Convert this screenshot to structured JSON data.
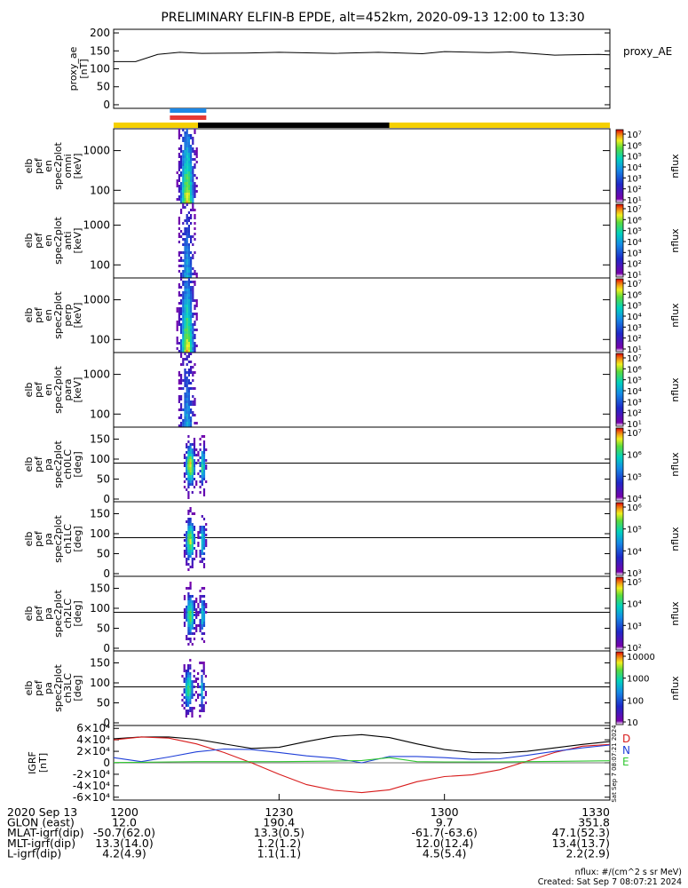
{
  "title": "PRELIMINARY ELFIN-B EPDE, alt=452km, 2020-09-13 12:00 to 13:30",
  "chart_data": [
    {
      "type": "line",
      "panel": "proxy_ae",
      "ylabel_lines": [
        "proxy_ae",
        "[nT]"
      ],
      "legend": "proxy_AE",
      "ylim": [
        -10,
        210
      ],
      "yticks": [
        "0",
        "50",
        "100",
        "150",
        "200"
      ],
      "x_minutes": [
        0,
        4,
        8,
        12,
        16,
        24,
        30,
        40,
        48,
        56,
        60,
        68,
        72,
        80,
        88,
        90
      ],
      "values": [
        120,
        120,
        140,
        146,
        143,
        144,
        146,
        143,
        146,
        142,
        148,
        145,
        147,
        138,
        140,
        139
      ]
    },
    {
      "type": "timebar",
      "panel": "orbit",
      "segments": [
        {
          "start_min": 0,
          "end_min": 15.3,
          "color": "#f5d000"
        },
        {
          "start_min": 15.3,
          "end_min": 50,
          "color": "#000000"
        },
        {
          "start_min": 50,
          "end_min": 90,
          "color": "#f5d000"
        }
      ],
      "markers": [
        {
          "start_min": 10.2,
          "end_min": 16.8,
          "color": "#1e88e5"
        },
        {
          "start_min": 10.2,
          "end_min": 16.8,
          "color": "#e53935"
        }
      ]
    },
    {
      "type": "heatmap",
      "panel": "omni",
      "ylabel_lines": [
        "elb",
        "pef",
        "en",
        "spec2plot",
        "omni",
        "[keV]"
      ],
      "yscale": "log",
      "yticks": [
        "100",
        "1000"
      ],
      "colorbar": {
        "label": "nflux",
        "ticks": [
          "10⁷",
          "10⁶",
          "10⁵",
          "10⁴",
          "10³",
          "10²",
          "10¹"
        ]
      },
      "x_range_min": [
        10.3,
        16.8
      ]
    },
    {
      "type": "heatmap",
      "panel": "anti",
      "ylabel_lines": [
        "elb",
        "pef",
        "en",
        "spec2plot",
        "anti",
        "[keV]"
      ],
      "yscale": "log",
      "yticks": [
        "100",
        "1000"
      ],
      "colorbar": {
        "label": "nflux",
        "ticks": [
          "10⁷",
          "10⁶",
          "10⁵",
          "10⁴",
          "10³",
          "10²",
          "10¹"
        ]
      },
      "x_range_min": [
        10.3,
        16.8
      ]
    },
    {
      "type": "heatmap",
      "panel": "perp",
      "ylabel_lines": [
        "elb",
        "pef",
        "en",
        "spec2plot",
        "perp",
        "[keV]"
      ],
      "yscale": "log",
      "yticks": [
        "100",
        "1000"
      ],
      "colorbar": {
        "label": "nflux",
        "ticks": [
          "10⁷",
          "10⁶",
          "10⁵",
          "10⁴",
          "10³",
          "10²",
          "10¹"
        ]
      },
      "x_range_min": [
        10.3,
        16.8
      ]
    },
    {
      "type": "heatmap",
      "panel": "para",
      "ylabel_lines": [
        "elb",
        "pef",
        "en",
        "spec2plot",
        "para",
        "[keV]"
      ],
      "yscale": "log",
      "yticks": [
        "100",
        "1000"
      ],
      "colorbar": {
        "label": "nflux",
        "ticks": [
          "10⁷",
          "10⁶",
          "10⁵",
          "10⁴",
          "10³",
          "10²",
          "10¹"
        ]
      },
      "x_range_min": [
        10.3,
        16.8
      ]
    },
    {
      "type": "heatmap",
      "panel": "ch0LC",
      "ylabel_lines": [
        "elb",
        "pef",
        "pa",
        "spec2plot",
        "ch0LC",
        "[deg]"
      ],
      "ylim": [
        0,
        180
      ],
      "yticks": [
        "0",
        "50",
        "100",
        "150"
      ],
      "ref_line": 90,
      "colorbar": {
        "label": "nflux",
        "ticks": [
          "10⁷",
          "10⁶",
          "10⁵",
          "10⁴"
        ]
      },
      "x_range_min": [
        12.0,
        16.8
      ]
    },
    {
      "type": "heatmap",
      "panel": "ch1LC",
      "ylabel_lines": [
        "elb",
        "pef",
        "pa",
        "spec2plot",
        "ch1LC",
        "[deg]"
      ],
      "ylim": [
        0,
        180
      ],
      "yticks": [
        "0",
        "50",
        "100",
        "150"
      ],
      "ref_line": 90,
      "colorbar": {
        "label": "nflux",
        "ticks": [
          "10⁶",
          "10⁵",
          "10⁴",
          "10³"
        ]
      },
      "x_range_min": [
        12.0,
        16.8
      ]
    },
    {
      "type": "heatmap",
      "panel": "ch2LC",
      "ylabel_lines": [
        "elb",
        "pef",
        "pa",
        "spec2plot",
        "ch2LC",
        "[deg]"
      ],
      "ylim": [
        0,
        180
      ],
      "yticks": [
        "0",
        "50",
        "100",
        "150"
      ],
      "ref_line": 90,
      "colorbar": {
        "label": "nflux",
        "ticks": [
          "10⁵",
          "10⁴",
          "10³",
          "10²"
        ]
      },
      "x_range_min": [
        12.0,
        16.8
      ]
    },
    {
      "type": "heatmap",
      "panel": "ch3LC",
      "ylabel_lines": [
        "elb",
        "pef",
        "pa",
        "spec2plot",
        "ch3LC",
        "[deg]"
      ],
      "ylim": [
        0,
        180
      ],
      "yticks": [
        "0",
        "50",
        "100",
        "150"
      ],
      "ref_line": 90,
      "colorbar": {
        "label": "nflux",
        "ticks": [
          "10000",
          "1000",
          "100",
          "10"
        ]
      },
      "x_range_min": [
        11.6,
        16.8
      ]
    },
    {
      "type": "line",
      "panel": "IGRF",
      "ylabel_lines": [
        "IGRF",
        "[nT]"
      ],
      "ylim": [
        -65000,
        65000
      ],
      "yticks": [
        "-6×10⁴",
        "-4×10⁴",
        "-2×10⁴",
        "0",
        "2×10⁴",
        "4×10⁴",
        "6×10⁴"
      ],
      "x_minutes": [
        0,
        5,
        10,
        15,
        20,
        25,
        30,
        35,
        40,
        45,
        50,
        55,
        60,
        65,
        70,
        75,
        80,
        85,
        90
      ],
      "series": [
        {
          "name": "D",
          "color": "#000000",
          "values": [
            42000,
            45000,
            45000,
            41000,
            33000,
            25000,
            27000,
            37000,
            46000,
            49000,
            44000,
            33000,
            23000,
            18000,
            17000,
            20000,
            26000,
            32000,
            37000
          ]
        },
        {
          "name": "D",
          "color": "#d81b1b",
          "values": [
            40000,
            45000,
            43000,
            33000,
            18000,
            0,
            -20000,
            -38000,
            -48000,
            -52000,
            -47000,
            -33000,
            -24000,
            -21000,
            -12000,
            3000,
            18000,
            29000,
            32000
          ]
        },
        {
          "name": "N",
          "color": "#1f3fd8",
          "values": [
            9000,
            2000,
            10000,
            19000,
            24000,
            23000,
            18000,
            12000,
            8000,
            0,
            11000,
            11000,
            9000,
            6000,
            7000,
            13000,
            20000,
            26000,
            31000
          ]
        },
        {
          "name": "E",
          "color": "#32c832",
          "values": [
            500,
            1000,
            1500,
            2000,
            2000,
            2000,
            2000,
            2500,
            3000,
            4000,
            9000,
            2000,
            1500,
            1500,
            1500,
            2000,
            2500,
            3000,
            3500
          ]
        }
      ],
      "legend_labels": [
        "D",
        "N",
        "E"
      ]
    }
  ],
  "x_axis": {
    "ticks": [
      "1200",
      "1230",
      "1300",
      "1330"
    ],
    "rows": [
      {
        "label": "2020 Sep 13",
        "values": [
          "1200",
          "1230",
          "1300",
          "1330"
        ]
      },
      {
        "label": "GLON (east)",
        "values": [
          "12.0",
          "190.4",
          "9.7",
          "351.8"
        ]
      },
      {
        "label": "MLAT-igrf(dip)",
        "values": [
          "-50.7(62.0)",
          "13.3(0.5)",
          "-61.7(-63.6)",
          "47.1(52.3)"
        ]
      },
      {
        "label": "MLT-igrf(dip)",
        "values": [
          "13.3(14.0)",
          "1.2(1.2)",
          "12.0(12.4)",
          "13.4(13.7)"
        ]
      },
      {
        "label": "L-igrf(dip)",
        "values": [
          "4.2(4.9)",
          "1.1(1.1)",
          "4.5(5.4)",
          "2.2(2.9)"
        ]
      }
    ]
  },
  "footer": {
    "units": "nflux: #/(cm^2 s sr MeV)",
    "created": "Created: Sat Sep  7 08:07:21 2024",
    "side_stamp": "Sat Sep  7 08:07:21 2024"
  }
}
